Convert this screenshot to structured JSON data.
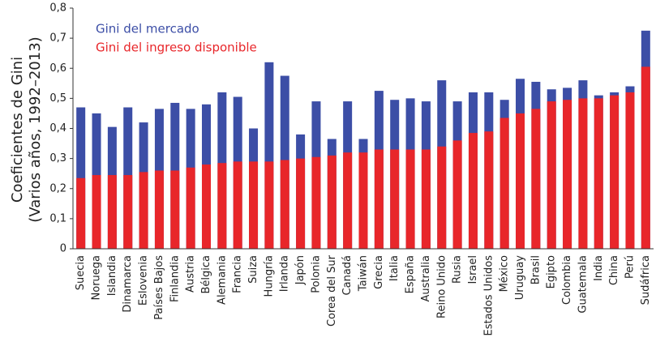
{
  "chart_data": {
    "type": "overlapping-bar",
    "y_label": [
      "Coeficientes de Gini",
      "(Varios años, 1992–2013)"
    ],
    "categories": [
      "Suecia",
      "Noruega",
      "Islandia",
      "Dinamarca",
      "Eslovenia",
      "Países Bajos",
      "Finlandia",
      "Austria",
      "Bélgica",
      "Alemania",
      "Francia",
      "Suiza",
      "Hungría",
      "Irlanda",
      "Japón",
      "Polonia",
      "Corea del Sur",
      "Canadá",
      "Taiwán",
      "Grecia",
      "Italia",
      "España",
      "Australia",
      "Reino Unido",
      "Rusia",
      "Israel",
      "Estados Unidos",
      "México",
      "Uruguay",
      "Brasil",
      "Egipto",
      "Colombia",
      "Guatemala",
      "India",
      "China",
      "Perú",
      "Sudáfrica"
    ],
    "series": [
      {
        "name": "Gini del mercado",
        "color": "#3c4ea6",
        "values": [
          0.47,
          0.45,
          0.405,
          0.47,
          0.42,
          0.465,
          0.485,
          0.465,
          0.48,
          0.52,
          0.505,
          0.4,
          0.62,
          0.575,
          0.38,
          0.49,
          0.365,
          0.49,
          0.365,
          0.525,
          0.495,
          0.5,
          0.49,
          0.56,
          0.49,
          0.52,
          0.52,
          0.495,
          0.565,
          0.555,
          0.53,
          0.535,
          0.56,
          0.51,
          0.52,
          0.54,
          0.725
        ]
      },
      {
        "name": "Gini del ingreso disponible",
        "color": "#e8262a",
        "values": [
          0.235,
          0.245,
          0.245,
          0.245,
          0.255,
          0.26,
          0.26,
          0.27,
          0.28,
          0.285,
          0.29,
          0.29,
          0.29,
          0.295,
          0.3,
          0.305,
          0.31,
          0.32,
          0.32,
          0.33,
          0.33,
          0.33,
          0.33,
          0.34,
          0.36,
          0.385,
          0.39,
          0.435,
          0.45,
          0.465,
          0.49,
          0.495,
          0.5,
          0.5,
          0.51,
          0.52,
          0.605
        ]
      }
    ],
    "ylim": [
      0,
      0.8
    ],
    "yticks": [
      0,
      {
        "value": 0.1,
        "label": "0,1"
      },
      {
        "value": 0.2,
        "label": "0,2"
      },
      {
        "value": 0.3,
        "label": "0,3"
      },
      {
        "value": 0.4,
        "label": "0,4"
      },
      {
        "value": 0.5,
        "label": "0,5"
      },
      {
        "value": 0.6,
        "label": "0,6"
      },
      {
        "value": 0.7,
        "label": "0,7"
      },
      {
        "value": 0.8,
        "label": "0,8"
      }
    ],
    "legend": "upper left"
  }
}
